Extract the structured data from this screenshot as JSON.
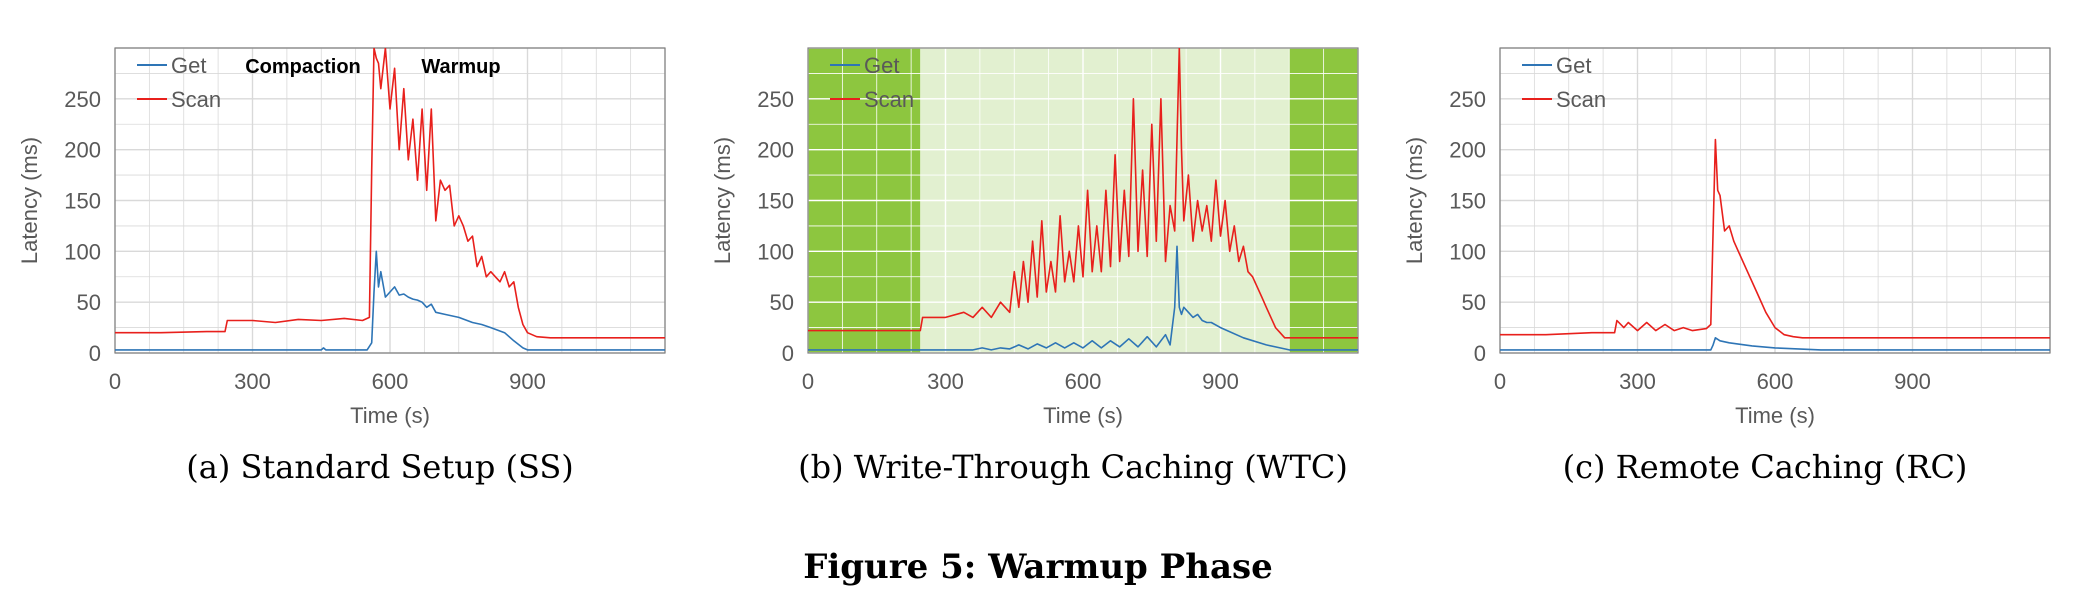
{
  "figure_title": "Figure 5: Warmup Phase",
  "colors": {
    "get": "#2e75b6",
    "scan": "#e8201c",
    "grid": "#d9d9d9",
    "axis_text": "#595959",
    "region_dark": "#8dc63f",
    "region_light": "#e2f0d0"
  },
  "chart_data": [
    {
      "type": "line",
      "caption": "(a) Standard Setup (SS)",
      "xlabel": "Time (s)",
      "ylabel": "Latency (ms)",
      "xlim": [
        0,
        1200
      ],
      "ylim": [
        0,
        300
      ],
      "xticks": [
        0,
        300,
        600,
        900
      ],
      "yticks": [
        0,
        50,
        100,
        150,
        200,
        250
      ],
      "grid": true,
      "legend": "top-left",
      "annotations": [
        "Compaction",
        "Warmup"
      ],
      "regions": [],
      "series": [
        {
          "name": "Get",
          "x": [
            0,
            100,
            200,
            300,
            400,
            450,
            455,
            460,
            500,
            550,
            560,
            565,
            570,
            575,
            580,
            590,
            600,
            610,
            620,
            630,
            640,
            650,
            660,
            670,
            680,
            690,
            700,
            720,
            750,
            780,
            800,
            820,
            850,
            870,
            890,
            900,
            950,
            1000,
            1100,
            1200
          ],
          "y": [
            3,
            3,
            3,
            3,
            3,
            3,
            5,
            3,
            3,
            3,
            10,
            60,
            100,
            65,
            80,
            55,
            60,
            65,
            57,
            58,
            55,
            53,
            52,
            50,
            45,
            48,
            40,
            38,
            35,
            30,
            28,
            25,
            20,
            12,
            5,
            3,
            3,
            3,
            3,
            3
          ]
        },
        {
          "name": "Scan",
          "x": [
            0,
            100,
            200,
            240,
            245,
            300,
            350,
            400,
            450,
            500,
            540,
            555,
            560,
            565,
            570,
            575,
            580,
            590,
            600,
            610,
            620,
            630,
            640,
            650,
            660,
            670,
            680,
            690,
            700,
            710,
            720,
            730,
            740,
            750,
            760,
            770,
            780,
            790,
            800,
            810,
            820,
            830,
            840,
            850,
            860,
            870,
            880,
            890,
            900,
            920,
            950,
            1000,
            1100,
            1200
          ],
          "y": [
            20,
            20,
            21,
            21,
            32,
            32,
            30,
            33,
            32,
            34,
            32,
            35,
            180,
            300,
            290,
            285,
            260,
            300,
            240,
            280,
            200,
            260,
            190,
            230,
            170,
            240,
            160,
            240,
            130,
            170,
            160,
            165,
            125,
            135,
            125,
            110,
            115,
            85,
            95,
            75,
            80,
            75,
            70,
            80,
            65,
            70,
            45,
            28,
            20,
            16,
            15,
            15,
            15,
            15
          ]
        }
      ]
    },
    {
      "type": "line",
      "caption": "(b) Write-Through Caching (WTC)",
      "xlabel": "Time (s)",
      "ylabel": "Latency (ms)",
      "xlim": [
        0,
        1200
      ],
      "ylim": [
        0,
        300
      ],
      "xticks": [
        0,
        300,
        600,
        900
      ],
      "yticks": [
        0,
        50,
        100,
        150,
        200,
        250
      ],
      "grid": true,
      "legend": "top-left",
      "annotations": [],
      "regions": [
        {
          "from": 0,
          "to": 245,
          "shade": "dark"
        },
        {
          "from": 245,
          "to": 1050,
          "shade": "light"
        },
        {
          "from": 1050,
          "to": 1200,
          "shade": "dark"
        }
      ],
      "series": [
        {
          "name": "Get",
          "x": [
            0,
            100,
            200,
            245,
            300,
            360,
            380,
            400,
            420,
            440,
            460,
            480,
            500,
            520,
            540,
            560,
            580,
            600,
            620,
            640,
            660,
            680,
            700,
            720,
            740,
            760,
            780,
            790,
            800,
            805,
            810,
            815,
            820,
            830,
            840,
            850,
            860,
            870,
            880,
            900,
            950,
            1000,
            1040,
            1050,
            1100,
            1200
          ],
          "y": [
            3,
            3,
            3,
            3,
            3,
            3,
            5,
            3,
            5,
            4,
            8,
            4,
            9,
            5,
            10,
            5,
            10,
            5,
            12,
            5,
            12,
            6,
            14,
            6,
            16,
            6,
            18,
            8,
            45,
            105,
            45,
            38,
            45,
            40,
            35,
            38,
            32,
            30,
            30,
            25,
            15,
            8,
            4,
            3,
            3,
            3
          ]
        },
        {
          "name": "Scan",
          "x": [
            0,
            100,
            200,
            245,
            250,
            300,
            340,
            360,
            380,
            400,
            420,
            440,
            450,
            460,
            470,
            480,
            490,
            500,
            510,
            520,
            530,
            540,
            550,
            560,
            570,
            580,
            590,
            600,
            610,
            620,
            630,
            640,
            650,
            660,
            670,
            680,
            690,
            700,
            710,
            720,
            730,
            740,
            750,
            760,
            770,
            780,
            790,
            800,
            805,
            810,
            815,
            820,
            830,
            840,
            850,
            860,
            870,
            880,
            890,
            900,
            910,
            920,
            930,
            940,
            950,
            960,
            970,
            980,
            990,
            1000,
            1010,
            1020,
            1030,
            1040,
            1050,
            1100,
            1200
          ],
          "y": [
            22,
            22,
            22,
            22,
            35,
            35,
            40,
            35,
            45,
            35,
            50,
            40,
            80,
            45,
            90,
            50,
            110,
            55,
            130,
            60,
            90,
            60,
            135,
            70,
            100,
            70,
            125,
            75,
            160,
            80,
            125,
            80,
            160,
            85,
            195,
            90,
            160,
            95,
            250,
            100,
            180,
            95,
            225,
            110,
            250,
            90,
            145,
            120,
            210,
            300,
            200,
            130,
            175,
            110,
            150,
            120,
            145,
            110,
            170,
            115,
            150,
            100,
            125,
            90,
            105,
            80,
            75,
            65,
            55,
            45,
            35,
            25,
            20,
            15,
            15,
            15,
            15
          ]
        }
      ]
    },
    {
      "type": "line",
      "caption": "(c) Remote Caching (RC)",
      "xlabel": "Time (s)",
      "ylabel": "Latency (ms)",
      "xlim": [
        0,
        1200
      ],
      "ylim": [
        0,
        300
      ],
      "xticks": [
        0,
        300,
        600,
        900
      ],
      "yticks": [
        0,
        50,
        100,
        150,
        200,
        250
      ],
      "grid": true,
      "legend": "top-left",
      "annotations": [],
      "regions": [],
      "series": [
        {
          "name": "Get",
          "x": [
            0,
            100,
            200,
            300,
            400,
            450,
            460,
            465,
            470,
            480,
            500,
            550,
            600,
            650,
            700,
            800,
            1000,
            1200
          ],
          "y": [
            3,
            3,
            3,
            3,
            3,
            3,
            3,
            8,
            15,
            12,
            10,
            7,
            5,
            4,
            3,
            3,
            3,
            3
          ]
        },
        {
          "name": "Scan",
          "x": [
            0,
            100,
            200,
            250,
            255,
            270,
            280,
            300,
            320,
            340,
            360,
            380,
            400,
            420,
            450,
            460,
            465,
            470,
            475,
            480,
            490,
            500,
            510,
            520,
            540,
            560,
            580,
            600,
            620,
            640,
            660,
            700,
            800,
            1000,
            1200
          ],
          "y": [
            18,
            18,
            20,
            20,
            32,
            25,
            30,
            22,
            30,
            22,
            28,
            22,
            25,
            22,
            24,
            28,
            120,
            210,
            160,
            155,
            120,
            125,
            110,
            100,
            80,
            60,
            40,
            25,
            18,
            16,
            15,
            15,
            15,
            15,
            15
          ]
        }
      ]
    }
  ]
}
